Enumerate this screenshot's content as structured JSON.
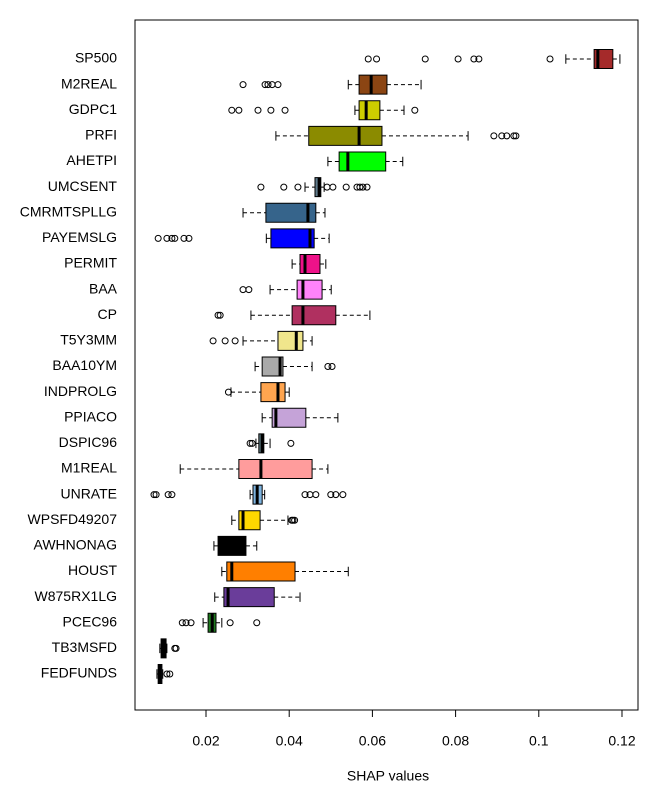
{
  "chart_data": {
    "type": "boxplot",
    "orientation": "horizontal",
    "xlabel": "SHAP values",
    "xlim": [
      0.00293,
      0.12385
    ],
    "xticks": [
      0.02,
      0.04,
      0.06,
      0.08,
      0.1,
      0.12
    ],
    "categories": [
      "SP500",
      "M2REAL",
      "GDPC1",
      "PRFI",
      "AHETPI",
      "UMCSENT",
      "CMRMTSPLLG",
      "PAYEMSLG",
      "PERMIT",
      "BAA",
      "CP",
      "T5Y3MM",
      "BAA10YM",
      "INDPROLG",
      "PPIACO",
      "DSPIC96",
      "M1REAL",
      "UNRATE",
      "WPSFD49207",
      "AWHNONAG",
      "HOUST",
      "W875RX1LG",
      "PCEC96",
      "TB3MSFD",
      "FEDFUNDS"
    ],
    "colors": [
      "#a52a2a",
      "#8b4513",
      "#cdcd00",
      "#8b8b00",
      "#00ff00",
      "#607b8b",
      "#36648b",
      "#0000ff",
      "#ee1289",
      "#ff83fa",
      "#b03060",
      "#f0e68c",
      "#a9a9a9",
      "#ffa54f",
      "#c5a3d8",
      "#5e7880",
      "#ff9c9c",
      "#7eb4e0",
      "#ffd700",
      "#000000",
      "#ff7f00",
      "#6a3d9a",
      "#1f7a1f",
      "#000000",
      "#1c1c3c"
    ],
    "boxes": [
      {
        "whislo": 0.1065,
        "q1": 0.1133,
        "med": 0.1142,
        "q3": 0.1178,
        "whishi": 0.1195,
        "fliers": [
          0.059,
          0.061,
          0.0727,
          0.0806,
          0.0844,
          0.0856,
          0.1027
        ]
      },
      {
        "whislo": 0.0542,
        "q1": 0.0568,
        "med": 0.0597,
        "q3": 0.0635,
        "whishi": 0.0717,
        "fliers": [
          0.0289,
          0.0342,
          0.0349,
          0.0359,
          0.0373
        ]
      },
      {
        "whislo": 0.0558,
        "q1": 0.0568,
        "med": 0.0585,
        "q3": 0.0618,
        "whishi": 0.0676,
        "fliers": [
          0.0262,
          0.0279,
          0.0325,
          0.0356,
          0.039,
          0.0702
        ]
      },
      {
        "whislo": 0.0368,
        "q1": 0.0447,
        "med": 0.0568,
        "q3": 0.0623,
        "whishi": 0.083,
        "fliers": [
          0.0892,
          0.0911,
          0.0923,
          0.094,
          0.0945
        ]
      },
      {
        "whislo": 0.0493,
        "q1": 0.052,
        "med": 0.0541,
        "q3": 0.0632,
        "whishi": 0.0673,
        "fliers": []
      },
      {
        "whislo": 0.0438,
        "q1": 0.0462,
        "med": 0.0472,
        "q3": 0.0476,
        "whishi": 0.0484,
        "fliers": [
          0.0332,
          0.0387,
          0.0421,
          0.0491,
          0.0505,
          0.0537,
          0.0563,
          0.057,
          0.0577,
          0.0587
        ]
      },
      {
        "whislo": 0.0289,
        "q1": 0.0344,
        "med": 0.0445,
        "q3": 0.0464,
        "whishi": 0.0486,
        "fliers": []
      },
      {
        "whislo": 0.0345,
        "q1": 0.0356,
        "med": 0.045,
        "q3": 0.046,
        "whishi": 0.0496,
        "fliers": [
          0.0085,
          0.0106,
          0.0118,
          0.0125,
          0.0147,
          0.0159
        ]
      },
      {
        "whislo": 0.0407,
        "q1": 0.0426,
        "med": 0.0438,
        "q3": 0.0474,
        "whishi": 0.0488,
        "fliers": []
      },
      {
        "whislo": 0.0354,
        "q1": 0.0419,
        "med": 0.0433,
        "q3": 0.0479,
        "whishi": 0.0501,
        "fliers": [
          0.0289,
          0.0303
        ]
      },
      {
        "whislo": 0.0308,
        "q1": 0.0407,
        "med": 0.0433,
        "q3": 0.0512,
        "whishi": 0.0594,
        "fliers": [
          0.0229,
          0.0234
        ]
      },
      {
        "whislo": 0.0289,
        "q1": 0.0373,
        "med": 0.0417,
        "q3": 0.0433,
        "whishi": 0.0455,
        "fliers": [
          0.0217,
          0.0246,
          0.027
        ]
      },
      {
        "whislo": 0.0318,
        "q1": 0.0335,
        "med": 0.0378,
        "q3": 0.0385,
        "whishi": 0.0455,
        "fliers": [
          0.0493,
          0.0503
        ]
      },
      {
        "whislo": 0.026,
        "q1": 0.0332,
        "med": 0.0373,
        "q3": 0.039,
        "whishi": 0.04,
        "fliers": [
          0.0254
        ]
      },
      {
        "whislo": 0.0335,
        "q1": 0.0359,
        "med": 0.0368,
        "q3": 0.044,
        "whishi": 0.0517,
        "fliers": []
      },
      {
        "whislo": 0.032,
        "q1": 0.0327,
        "med": 0.0335,
        "q3": 0.0339,
        "whishi": 0.0354,
        "fliers": [
          0.0306,
          0.0311,
          0.0404
        ]
      },
      {
        "whislo": 0.0138,
        "q1": 0.0279,
        "med": 0.0332,
        "q3": 0.0455,
        "whishi": 0.0493,
        "fliers": []
      },
      {
        "whislo": 0.0306,
        "q1": 0.0313,
        "med": 0.0323,
        "q3": 0.0335,
        "whishi": 0.0341,
        "fliers": [
          0.0075,
          0.008,
          0.0109,
          0.0118,
          0.0438,
          0.045,
          0.0464,
          0.05,
          0.0512,
          0.0529
        ]
      },
      {
        "whislo": 0.0262,
        "q1": 0.0279,
        "med": 0.0289,
        "q3": 0.033,
        "whishi": 0.0397,
        "fliers": [
          0.0406,
          0.0409,
          0.0413
        ]
      },
      {
        "whislo": 0.0219,
        "q1": 0.0229,
        "med": 0.027,
        "q3": 0.0296,
        "whishi": 0.0322,
        "fliers": []
      },
      {
        "whislo": 0.0238,
        "q1": 0.025,
        "med": 0.0262,
        "q3": 0.0414,
        "whishi": 0.0542,
        "fliers": []
      },
      {
        "whislo": 0.0221,
        "q1": 0.0243,
        "med": 0.0253,
        "q3": 0.0364,
        "whishi": 0.0426,
        "fliers": []
      },
      {
        "whislo": 0.0193,
        "q1": 0.0205,
        "med": 0.0215,
        "q3": 0.0224,
        "whishi": 0.0238,
        "fliers": [
          0.0143,
          0.0152,
          0.0164,
          0.0258,
          0.0322
        ]
      },
      {
        "whislo": 0.0089,
        "q1": 0.0092,
        "med": 0.0096,
        "q3": 0.0104,
        "whishi": 0.0106,
        "fliers": [
          0.0125,
          0.0128
        ]
      },
      {
        "whislo": 0.0082,
        "q1": 0.0085,
        "med": 0.0089,
        "q3": 0.0094,
        "whishi": 0.0096,
        "fliers": [
          0.0106,
          0.0113
        ]
      }
    ]
  }
}
